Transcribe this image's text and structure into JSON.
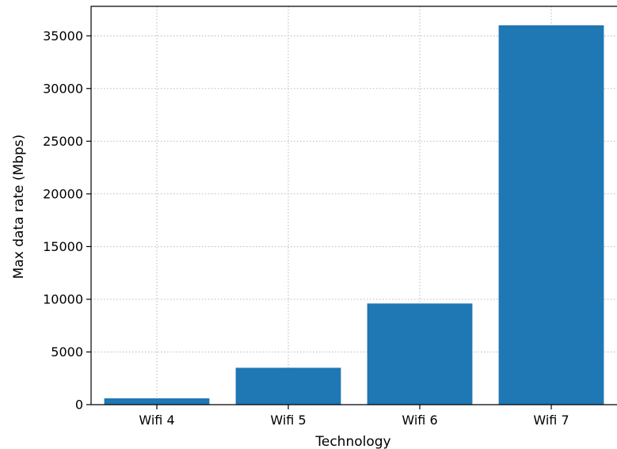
{
  "chart_data": {
    "type": "bar",
    "title": "",
    "xlabel": "Technology",
    "ylabel": "Max data rate (Mbps)",
    "categories": [
      "Wifi 4",
      "Wifi 5",
      "Wifi 6",
      "Wifi 7"
    ],
    "values": [
      600,
      3500,
      9600,
      36000
    ],
    "ylim": [
      0,
      37800
    ],
    "yticks": [
      0,
      5000,
      10000,
      15000,
      20000,
      25000,
      30000,
      35000
    ],
    "ytick_labels": [
      "0",
      "5000",
      "10000",
      "15000",
      "20000",
      "25000",
      "30000",
      "35000"
    ],
    "grid": true,
    "bar_color": "#1f77b4"
  }
}
